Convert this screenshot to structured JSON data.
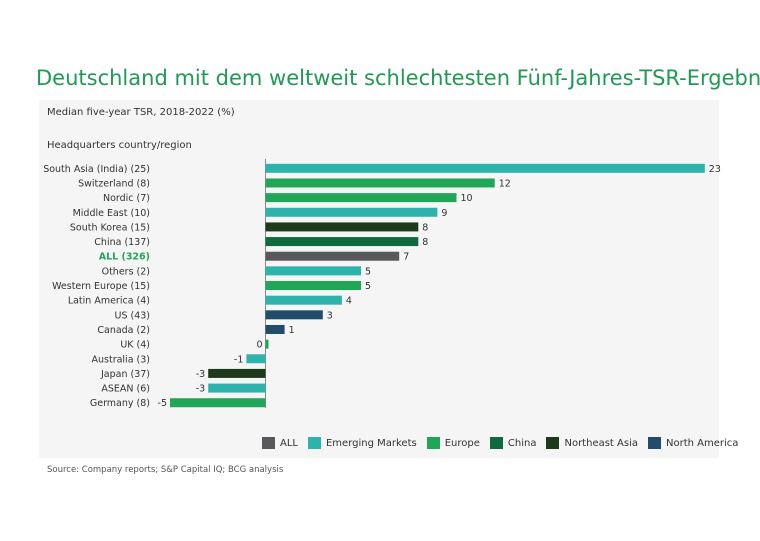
{
  "title": "Deutschland mit dem weltweit schlechtesten Fünf-Jahres-TSR-Ergebnis",
  "source": "Source: Company reports; S&P Capital IQ; BCG analysis",
  "colors": {
    "ALL": "#58595b",
    "Emerging Markets": "#2db3ac",
    "Europe": "#21a657",
    "China": "#0f6b3f",
    "Northeast Asia": "#1d3b1a",
    "North America": "#214d6b"
  },
  "chart_data": {
    "type": "bar",
    "orientation": "horizontal",
    "title": "Median five-year TSR, 2018-2022 (%)",
    "ylabel": "Headquarters country/region",
    "xlim": [
      -5,
      23
    ],
    "categories": [
      "South Asia (India) (25)",
      "Switzerland (8)",
      "Nordic (7)",
      "Middle East (10)",
      "South Korea (15)",
      "China (137)",
      "ALL (326)",
      "Others (2)",
      "Western Europe (15)",
      "Latin America (4)",
      "US (43)",
      "Canada (2)",
      "UK (4)",
      "Australia (3)",
      "Japan (37)",
      "ASEAN (6)",
      "Germany (8)"
    ],
    "values": [
      23,
      12,
      10,
      9,
      8,
      8,
      7,
      5,
      5,
      4,
      3,
      1,
      0,
      -1,
      -3,
      -3,
      -5
    ],
    "groups": [
      "Emerging Markets",
      "Europe",
      "Europe",
      "Emerging Markets",
      "Northeast Asia",
      "China",
      "ALL",
      "Emerging Markets",
      "Europe",
      "Emerging Markets",
      "North America",
      "North America",
      "Europe",
      "Emerging Markets",
      "Northeast Asia",
      "Emerging Markets",
      "Europe"
    ],
    "highlight_category": "ALL (326)",
    "legend": [
      "ALL",
      "Emerging Markets",
      "Europe",
      "China",
      "Northeast Asia",
      "North America"
    ],
    "legend_position": "bottom-right"
  }
}
